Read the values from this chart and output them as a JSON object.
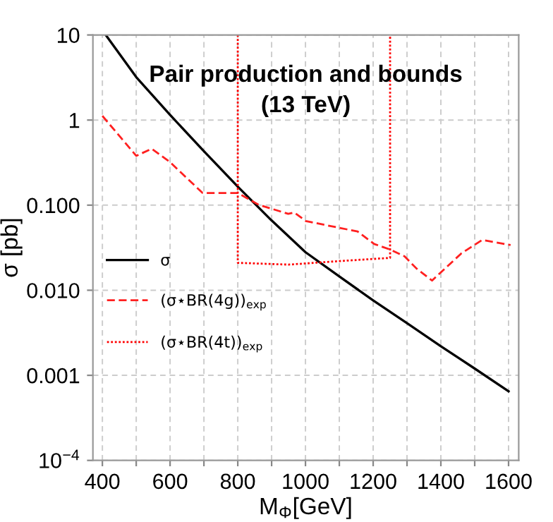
{
  "chart_data": {
    "type": "line",
    "title": "Pair production and bounds\n(13 TeV)",
    "xlabel": "M$_{Φ}$[GeV]",
    "ylabel": "σ [pb]",
    "log": "y",
    "grid": true,
    "legend": "left",
    "xlim": [
      372,
      1630
    ],
    "xticks": [
      400,
      {
        "value": 500,
        "label": null
      },
      600,
      {
        "value": 700,
        "label": null
      },
      800,
      {
        "value": 900,
        "label": null
      },
      1000,
      {
        "value": 1100,
        "label": null
      },
      1200,
      {
        "value": 1300,
        "label": null
      },
      1400,
      {
        "value": 1500,
        "label": null
      },
      1600
    ],
    "ylim": [
      0.0001,
      10
    ],
    "yticks": [
      {
        "value": 0.0001,
        "label": "10$^{−4}$"
      },
      {
        "value": 0.001,
        "label": "0.001"
      },
      {
        "value": 0.01,
        "label": "0.010"
      },
      {
        "value": 0.1,
        "label": "0.100"
      },
      1,
      10
    ],
    "series": [
      {
        "name": "σ",
        "color": "#000000",
        "line_style": "solid",
        "x": [
          410,
          500,
          600,
          700,
          800,
          900,
          1000,
          1100,
          1200,
          1300,
          1400,
          1500,
          1600
        ],
        "values": [
          10,
          3.2,
          1.15,
          0.43,
          0.165,
          0.066,
          0.028,
          0.0145,
          0.0076,
          0.0041,
          0.0022,
          0.0012,
          0.00065
        ]
      },
      {
        "name": "(σ⋆BR(4g))$_{exp}$",
        "color": "#ff2020",
        "line_style": "dashed",
        "x": [
          400,
          500,
          546,
          600,
          696,
          800,
          862,
          949,
          967,
          1001,
          1154,
          1203,
          1251,
          1293,
          1328,
          1374,
          1460,
          1522,
          1606
        ],
        "values": [
          1.12,
          0.38,
          0.46,
          0.32,
          0.139,
          0.139,
          0.101,
          0.079,
          0.082,
          0.065,
          0.049,
          0.035,
          0.03,
          0.025,
          0.018,
          0.013,
          0.027,
          0.039,
          0.034
        ]
      },
      {
        "name": "(σ⋆BR(4t))$_{exp}$",
        "color": "#ff0000",
        "line_style": "dotted",
        "x": [
          800,
          800,
          950,
          1100,
          1250,
          1250
        ],
        "values": [
          10,
          0.021,
          0.02,
          0.022,
          0.024,
          10
        ]
      }
    ]
  }
}
